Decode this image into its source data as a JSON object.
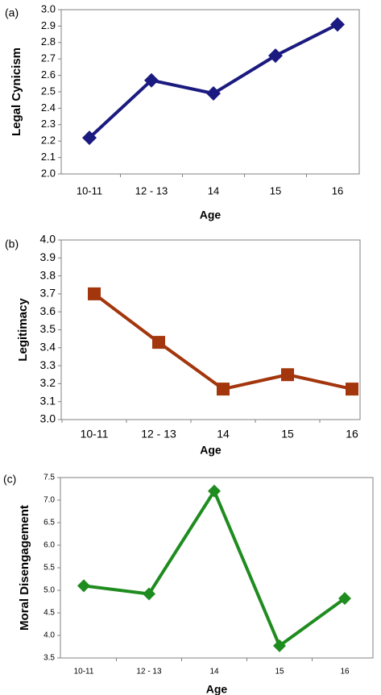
{
  "chart_data": [
    {
      "panel": "(a)",
      "type": "line",
      "categories": [
        "10-11",
        "12 - 13",
        "14",
        "15",
        "16"
      ],
      "values": [
        2.22,
        2.57,
        2.49,
        2.72,
        2.91
      ],
      "xlabel": "Age",
      "ylabel": "Legal Cynicism",
      "ylim": [
        2.0,
        3.0
      ],
      "yticks": [
        "2.0",
        "2.1",
        "2.2",
        "2.3",
        "2.4",
        "2.5",
        "2.6",
        "2.7",
        "2.8",
        "2.9",
        "3.0"
      ],
      "color": "#1a1a80",
      "marker": "diamond",
      "grid": false
    },
    {
      "panel": "(b)",
      "type": "line",
      "categories": [
        "10-11",
        "12 - 13",
        "14",
        "15",
        "16"
      ],
      "values": [
        3.7,
        3.43,
        3.17,
        3.25,
        3.17
      ],
      "xlabel": "Age",
      "ylabel": "Legitimacy",
      "ylim": [
        3.0,
        4.0
      ],
      "yticks": [
        "3.0",
        "3.1",
        "3.2",
        "3.3",
        "3.4",
        "3.5",
        "3.6",
        "3.7",
        "3.8",
        "3.9",
        "4.0"
      ],
      "color": "#a3360c",
      "marker": "square",
      "grid": false
    },
    {
      "panel": "(c)",
      "type": "line",
      "categories": [
        "10-11",
        "12 - 13",
        "14",
        "15",
        "16"
      ],
      "values": [
        5.1,
        4.92,
        7.2,
        3.77,
        4.82
      ],
      "xlabel": "Age",
      "ylabel": "Moral Disengagement",
      "ylim": [
        3.5,
        7.5
      ],
      "yticks": [
        "3.5",
        "4.0",
        "4.5",
        "5.0",
        "5.5",
        "6.0",
        "6.5",
        "7.0",
        "7.5"
      ],
      "color": "#1f8c1f",
      "marker": "diamond",
      "grid": false
    }
  ]
}
